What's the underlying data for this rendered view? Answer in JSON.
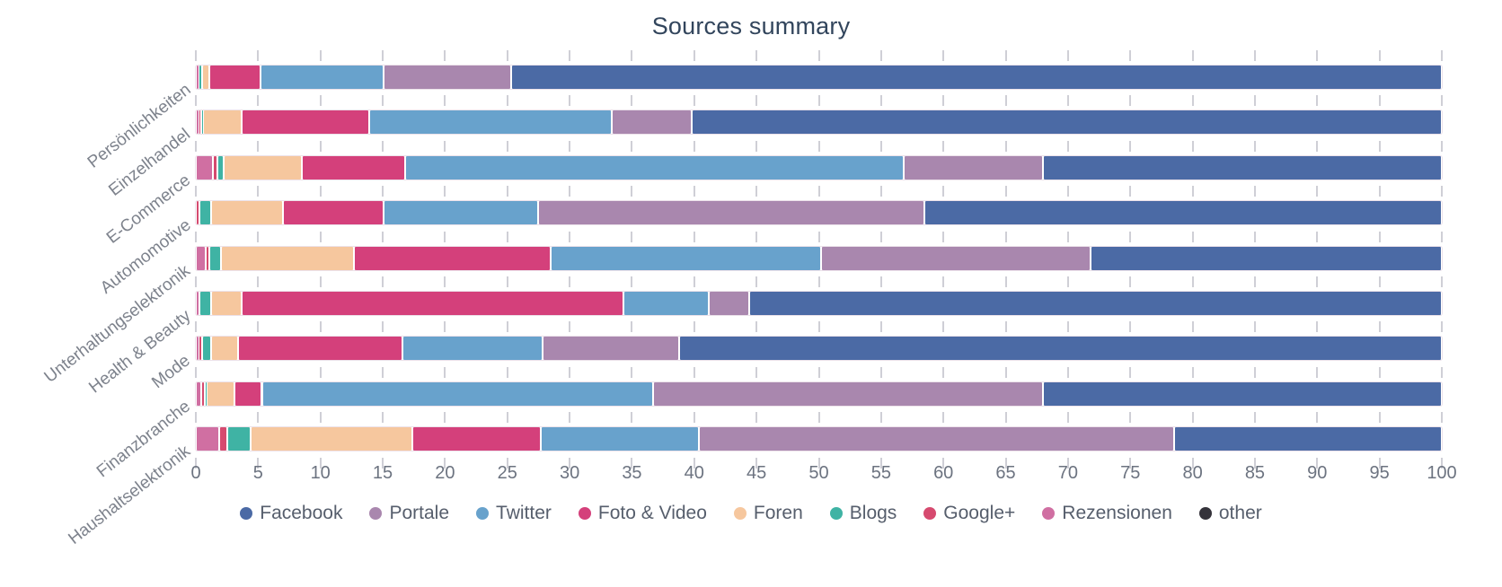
{
  "title": "Sources summary",
  "chart_data": {
    "type": "bar",
    "orientation": "horizontal-stacked",
    "unit": "percent",
    "title": "Sources summary",
    "xlabel": "",
    "ylabel": "",
    "xlim": [
      0,
      100
    ],
    "tick_step": 5,
    "x_tick_labels": [
      "0",
      "5",
      "10",
      "15",
      "20",
      "25",
      "30",
      "35",
      "40",
      "45",
      "50",
      "55",
      "60",
      "65",
      "70",
      "75",
      "80",
      "85",
      "90",
      "95",
      "100"
    ],
    "grid": "tick-dashes-between-rows",
    "legend_position": "bottom",
    "categories": [
      "Persönlichkeiten",
      "Einzelhandel",
      "E-Commerce",
      "Automomotive",
      "Unterhaltungselektronik",
      "Health & Beauty",
      "Mode",
      "Finanzbranche",
      "Haushaltselektronik"
    ],
    "stack_order": [
      "Rezensionen",
      "Google+",
      "Blogs",
      "Foren",
      "Foto & Video",
      "Twitter",
      "Portale",
      "Facebook",
      "other"
    ],
    "series": [
      {
        "name": "Facebook",
        "color": "#4b6aa5",
        "values": [
          74.7,
          60.2,
          32.0,
          41.5,
          28.2,
          55.6,
          61.2,
          32.0,
          21.5
        ]
      },
      {
        "name": "Portale",
        "color": "#a987ae",
        "values": [
          10.2,
          6.4,
          11.2,
          31.0,
          21.6,
          3.2,
          11.0,
          31.3,
          38.1
        ]
      },
      {
        "name": "Twitter",
        "color": "#68a2cc",
        "values": [
          9.9,
          19.5,
          40.0,
          12.4,
          21.7,
          6.9,
          11.2,
          31.4,
          12.7
        ]
      },
      {
        "name": "Foto & Video",
        "color": "#d4407b",
        "values": [
          4.1,
          10.2,
          8.3,
          8.1,
          15.8,
          30.6,
          13.2,
          2.2,
          10.3
        ]
      },
      {
        "name": "Foren",
        "color": "#f6c79e",
        "values": [
          0.6,
          3.1,
          6.3,
          5.8,
          10.7,
          2.5,
          2.2,
          2.2,
          13.0
        ]
      },
      {
        "name": "Blogs",
        "color": "#3fb3a4",
        "values": [
          0.3,
          0.2,
          0.5,
          0.9,
          0.9,
          0.9,
          0.7,
          0.2,
          1.9
        ]
      },
      {
        "name": "Google+",
        "color": "#d64a6f",
        "values": [
          0.0,
          0.2,
          0.3,
          0.3,
          0.3,
          0.0,
          0.3,
          0.3,
          0.6
        ]
      },
      {
        "name": "Rezensionen",
        "color": "#d06fa2",
        "values": [
          0.2,
          0.2,
          1.4,
          0.0,
          0.8,
          0.3,
          0.2,
          0.4,
          1.9
        ]
      },
      {
        "name": "other",
        "color": "#35333b",
        "values": [
          0.0,
          0.0,
          0.0,
          0.0,
          0.0,
          0.0,
          0.0,
          0.0,
          0.0
        ]
      }
    ]
  },
  "colors": {
    "title_text": "#32455c",
    "axis_text": "#6c7380",
    "category_text": "#7d828c",
    "legend_text": "#565e6c",
    "tick_mark": "#cfcfd6",
    "background": "#ffffff"
  }
}
